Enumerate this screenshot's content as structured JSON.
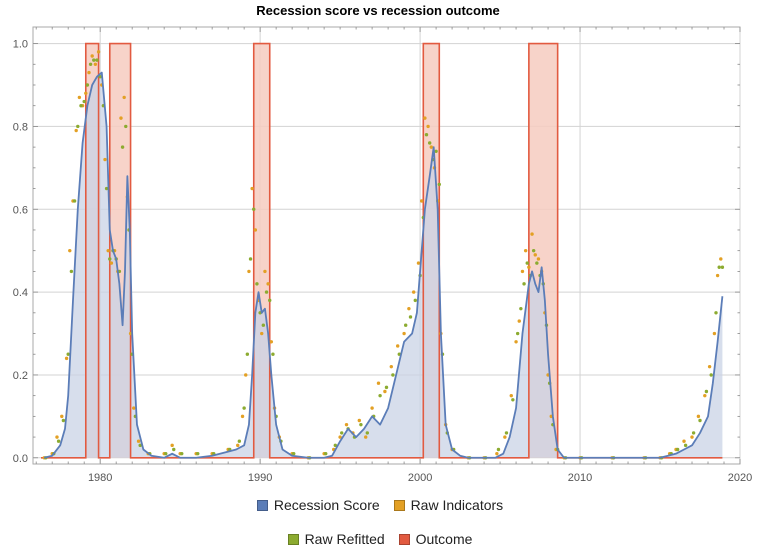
{
  "chart_data": {
    "type": "line",
    "title": "Recession score vs recession outcome",
    "xlabel": "",
    "ylabel": "",
    "xlim": [
      1975.8,
      2020
    ],
    "ylim": [
      -0.015,
      1.04
    ],
    "x_ticks": [
      "1980",
      "1990",
      "2000",
      "2010",
      "2020"
    ],
    "y_ticks": [
      "0.0",
      "0.2",
      "0.4",
      "0.6",
      "0.8",
      "1.0"
    ],
    "grid": true,
    "legend_position": "bottom",
    "colors": {
      "recession_score": "#5b7db8",
      "recession_score_fill": "#c9d3e6",
      "raw_indicators": "#e3a024",
      "raw_refitted": "#8cab30",
      "outcome": "#e25a40",
      "outcome_fill": "#f6cbc0"
    },
    "outcome_periods": [
      [
        1979.1,
        1979.9
      ],
      [
        1980.6,
        1981.9
      ],
      [
        1989.6,
        1990.6
      ],
      [
        2000.2,
        2001.2
      ],
      [
        2006.8,
        2008.6
      ]
    ],
    "series": [
      {
        "name": "Recession Score",
        "x": [
          1976.5,
          1977.0,
          1977.5,
          1977.8,
          1978.0,
          1978.3,
          1978.6,
          1978.9,
          1979.2,
          1979.5,
          1979.8,
          1980.1,
          1980.4,
          1980.6,
          1980.8,
          1981.0,
          1981.2,
          1981.4,
          1981.55,
          1981.7,
          1981.85,
          1982.0,
          1982.3,
          1982.7,
          1983.2,
          1984.0,
          1984.5,
          1985.0,
          1986.0,
          1987.0,
          1988.0,
          1988.5,
          1989.0,
          1989.3,
          1989.5,
          1989.7,
          1989.9,
          1990.1,
          1990.3,
          1990.5,
          1990.7,
          1991.0,
          1991.4,
          1992.0,
          1993.0,
          1994.0,
          1994.5,
          1995.0,
          1995.5,
          1996.0,
          1996.5,
          1997.0,
          1997.5,
          1998.0,
          1998.5,
          1999.0,
          1999.5,
          1999.8,
          2000.0,
          2000.3,
          2000.6,
          2000.85,
          2001.1,
          2001.3,
          2001.6,
          2002.0,
          2002.5,
          2003.0,
          2004.0,
          2004.7,
          2005.2,
          2005.6,
          2006.0,
          2006.4,
          2006.8,
          2007.0,
          2007.2,
          2007.4,
          2007.6,
          2007.8,
          2008.0,
          2008.3,
          2008.6,
          2009.0,
          2010.0,
          2012.0,
          2014.0,
          2015.0,
          2015.5,
          2016.0,
          2016.5,
          2017.0,
          2017.5,
          2018.0,
          2018.3,
          2018.6,
          2018.9
        ],
        "y": [
          0.0,
          0.005,
          0.03,
          0.07,
          0.15,
          0.38,
          0.6,
          0.76,
          0.85,
          0.9,
          0.92,
          0.93,
          0.8,
          0.55,
          0.5,
          0.48,
          0.42,
          0.32,
          0.45,
          0.68,
          0.55,
          0.3,
          0.08,
          0.02,
          0.005,
          0.0,
          0.01,
          0.0,
          0.0,
          0.005,
          0.015,
          0.02,
          0.03,
          0.08,
          0.2,
          0.35,
          0.4,
          0.35,
          0.36,
          0.3,
          0.2,
          0.08,
          0.02,
          0.005,
          0.0,
          0.0,
          0.005,
          0.04,
          0.07,
          0.05,
          0.07,
          0.1,
          0.08,
          0.12,
          0.2,
          0.28,
          0.3,
          0.35,
          0.45,
          0.6,
          0.68,
          0.75,
          0.6,
          0.3,
          0.08,
          0.02,
          0.005,
          0.0,
          0.0,
          0.0,
          0.01,
          0.05,
          0.12,
          0.3,
          0.42,
          0.45,
          0.42,
          0.4,
          0.46,
          0.38,
          0.25,
          0.1,
          0.02,
          0.0,
          0.0,
          0.0,
          0.0,
          0.0,
          0.005,
          0.01,
          0.02,
          0.03,
          0.06,
          0.1,
          0.18,
          0.28,
          0.39
        ]
      },
      {
        "name": "Raw Indicators",
        "x": [
          1976.5,
          1977.0,
          1977.3,
          1977.6,
          1977.9,
          1978.1,
          1978.3,
          1978.5,
          1978.7,
          1978.9,
          1979.1,
          1979.3,
          1979.5,
          1979.7,
          1979.9,
          1980.1,
          1980.3,
          1980.5,
          1980.7,
          1980.9,
          1981.1,
          1981.3,
          1981.5,
          1981.7,
          1981.9,
          1982.1,
          1982.4,
          1983.0,
          1984.0,
          1984.5,
          1985.0,
          1986.0,
          1987.0,
          1988.0,
          1988.6,
          1988.9,
          1989.1,
          1989.3,
          1989.5,
          1989.7,
          1989.9,
          1990.1,
          1990.3,
          1990.5,
          1990.7,
          1990.9,
          1991.2,
          1992.0,
          1993.0,
          1994.0,
          1994.6,
          1995.0,
          1995.4,
          1995.8,
          1996.2,
          1996.6,
          1997.0,
          1997.4,
          1997.8,
          1998.2,
          1998.6,
          1999.0,
          1999.3,
          1999.6,
          1999.9,
          2000.1,
          2000.3,
          2000.5,
          2000.7,
          2000.9,
          2001.1,
          2001.3,
          2001.6,
          2002.0,
          2003.0,
          2004.0,
          2004.8,
          2005.3,
          2005.7,
          2006.0,
          2006.2,
          2006.4,
          2006.6,
          2006.8,
          2007.0,
          2007.2,
          2007.4,
          2007.6,
          2007.8,
          2008.0,
          2008.2,
          2008.5,
          2009.0,
          2010.0,
          2012.0,
          2014.0,
          2015.0,
          2015.6,
          2016.0,
          2016.5,
          2017.0,
          2017.4,
          2017.8,
          2018.1,
          2018.4,
          2018.6,
          2018.8
        ],
        "y": [
          0.0,
          0.01,
          0.05,
          0.1,
          0.24,
          0.5,
          0.62,
          0.79,
          0.87,
          0.85,
          0.88,
          0.93,
          0.97,
          0.95,
          0.98,
          0.9,
          0.72,
          0.5,
          0.47,
          0.5,
          0.45,
          0.82,
          0.87,
          0.63,
          0.3,
          0.12,
          0.04,
          0.01,
          0.01,
          0.03,
          0.01,
          0.01,
          0.01,
          0.02,
          0.03,
          0.1,
          0.2,
          0.45,
          0.65,
          0.55,
          0.38,
          0.3,
          0.45,
          0.42,
          0.28,
          0.12,
          0.05,
          0.01,
          0.0,
          0.01,
          0.02,
          0.05,
          0.08,
          0.06,
          0.09,
          0.05,
          0.12,
          0.18,
          0.16,
          0.22,
          0.27,
          0.3,
          0.36,
          0.4,
          0.47,
          0.62,
          0.82,
          0.8,
          0.75,
          0.7,
          0.62,
          0.3,
          0.08,
          0.02,
          0.0,
          0.0,
          0.01,
          0.05,
          0.15,
          0.28,
          0.33,
          0.45,
          0.5,
          0.46,
          0.54,
          0.49,
          0.48,
          0.45,
          0.35,
          0.2,
          0.1,
          0.02,
          0.0,
          0.0,
          0.0,
          0.0,
          0.0,
          0.01,
          0.02,
          0.04,
          0.05,
          0.1,
          0.15,
          0.22,
          0.3,
          0.44,
          0.48
        ]
      },
      {
        "name": "Raw Refitted",
        "x": [
          1976.6,
          1977.1,
          1977.4,
          1977.7,
          1978.0,
          1978.2,
          1978.4,
          1978.6,
          1978.8,
          1979.0,
          1979.2,
          1979.4,
          1979.6,
          1979.8,
          1980.0,
          1980.2,
          1980.4,
          1980.6,
          1980.8,
          1981.0,
          1981.2,
          1981.4,
          1981.6,
          1981.8,
          1982.0,
          1982.2,
          1982.5,
          1983.1,
          1984.1,
          1984.6,
          1985.1,
          1986.1,
          1987.1,
          1988.1,
          1988.7,
          1989.0,
          1989.2,
          1989.4,
          1989.6,
          1989.8,
          1990.0,
          1990.2,
          1990.4,
          1990.6,
          1990.8,
          1991.0,
          1991.3,
          1992.1,
          1993.1,
          1994.1,
          1994.7,
          1995.1,
          1995.5,
          1995.9,
          1996.3,
          1996.7,
          1997.1,
          1997.5,
          1997.9,
          1998.3,
          1998.7,
          1999.1,
          1999.4,
          1999.7,
          2000.0,
          2000.2,
          2000.4,
          2000.6,
          2000.8,
          2001.0,
          2001.2,
          2001.4,
          2001.7,
          2002.1,
          2003.1,
          2004.1,
          2004.9,
          2005.4,
          2005.8,
          2006.1,
          2006.3,
          2006.5,
          2006.7,
          2006.9,
          2007.1,
          2007.3,
          2007.5,
          2007.7,
          2007.9,
          2008.1,
          2008.3,
          2008.6,
          2009.1,
          2010.1,
          2012.1,
          2014.1,
          2015.1,
          2015.7,
          2016.1,
          2016.6,
          2017.1,
          2017.5,
          2017.9,
          2018.2,
          2018.5,
          2018.7,
          2018.9
        ],
        "y": [
          0.0,
          0.01,
          0.04,
          0.09,
          0.25,
          0.45,
          0.62,
          0.8,
          0.85,
          0.86,
          0.9,
          0.95,
          0.96,
          0.96,
          0.92,
          0.85,
          0.65,
          0.48,
          0.5,
          0.48,
          0.45,
          0.75,
          0.8,
          0.55,
          0.25,
          0.1,
          0.03,
          0.01,
          0.01,
          0.02,
          0.01,
          0.01,
          0.01,
          0.02,
          0.04,
          0.12,
          0.25,
          0.48,
          0.6,
          0.42,
          0.35,
          0.32,
          0.4,
          0.38,
          0.25,
          0.1,
          0.04,
          0.01,
          0.0,
          0.01,
          0.03,
          0.06,
          0.07,
          0.05,
          0.08,
          0.06,
          0.1,
          0.15,
          0.17,
          0.2,
          0.25,
          0.32,
          0.34,
          0.38,
          0.44,
          0.58,
          0.78,
          0.76,
          0.72,
          0.74,
          0.66,
          0.25,
          0.06,
          0.02,
          0.0,
          0.0,
          0.02,
          0.06,
          0.14,
          0.3,
          0.36,
          0.42,
          0.47,
          0.44,
          0.5,
          0.47,
          0.44,
          0.42,
          0.32,
          0.18,
          0.08,
          0.02,
          0.0,
          0.0,
          0.0,
          0.0,
          0.0,
          0.01,
          0.02,
          0.03,
          0.06,
          0.09,
          0.16,
          0.2,
          0.35,
          0.46,
          0.46
        ]
      },
      {
        "name": "Outcome",
        "x": [
          1976.3,
          1979.1,
          1979.1,
          1979.9,
          1979.9,
          1980.6,
          1980.6,
          1981.9,
          1981.9,
          1989.6,
          1989.6,
          1990.6,
          1990.6,
          2000.2,
          2000.2,
          2001.2,
          2001.2,
          2006.8,
          2006.8,
          2008.6,
          2008.6,
          2018.9
        ],
        "y": [
          0,
          0,
          1,
          1,
          0,
          0,
          1,
          1,
          0,
          0,
          1,
          1,
          0,
          0,
          1,
          1,
          0,
          0,
          1,
          1,
          0,
          0
        ]
      }
    ]
  }
}
